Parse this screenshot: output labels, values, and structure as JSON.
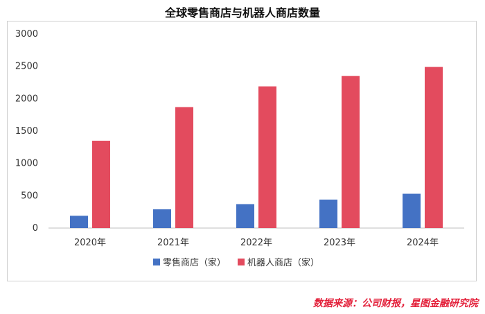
{
  "colors": {
    "retail": "#4472C4",
    "robot": "#E34B5E",
    "source": "#E3203A",
    "axis": "#bfbfbf"
  },
  "source_note": "数据来源：公司财报，星图金融研究院",
  "chart_data": {
    "type": "bar",
    "title": "全球零售商店与机器人商店数量",
    "xlabel": "",
    "ylabel": "",
    "categories": [
      "2020年",
      "2021年",
      "2022年",
      "2023年",
      "2024年"
    ],
    "series": [
      {
        "name": "零售商店（家）",
        "values": [
          190,
          290,
          370,
          440,
          530
        ]
      },
      {
        "name": "机器人商店（家）",
        "values": [
          1350,
          1870,
          2190,
          2350,
          2490
        ]
      }
    ],
    "ylim": [
      0,
      3000
    ],
    "yticks": [
      0,
      500,
      1000,
      1500,
      2000,
      2500,
      3000
    ],
    "grid": false,
    "legend_position": "bottom"
  }
}
